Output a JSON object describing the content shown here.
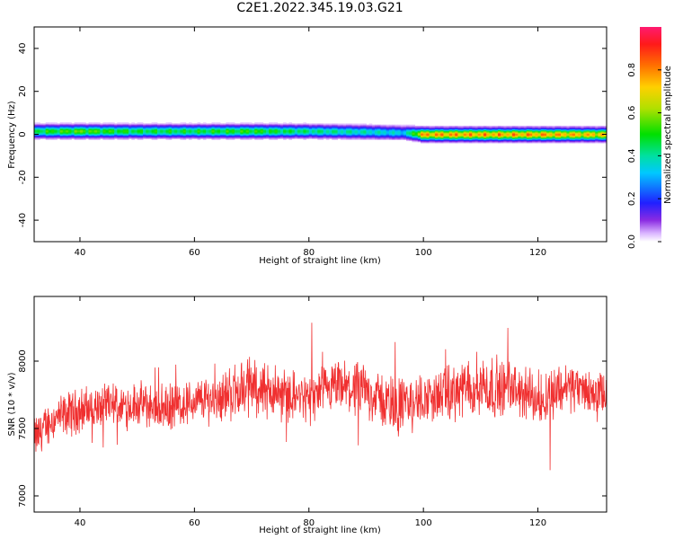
{
  "title": "C2E1.2022.345.19.03.G21",
  "chart_data": [
    {
      "type": "heatmap",
      "xlabel": "Height of straight line (km)",
      "ylabel": "Frequency (Hz)",
      "xlim": [
        32,
        132
      ],
      "ylim": [
        -50,
        50
      ],
      "xticks": [
        40,
        60,
        80,
        100,
        120
      ],
      "yticks": [
        -40,
        -20,
        0,
        20,
        40
      ],
      "colorbar": {
        "label": "Normalized spectral amplitude",
        "ticks": [
          0.0,
          0.2,
          0.4,
          0.6,
          0.8
        ],
        "range": [
          0,
          1
        ],
        "colormap": "rainbow"
      },
      "ridge": {
        "x": [
          32,
          40,
          50,
          60,
          70,
          80,
          90,
          97,
          100,
          110,
          120,
          130,
          132
        ],
        "frequency": [
          1.5,
          1.5,
          1.5,
          1.5,
          1.5,
          1.5,
          1.2,
          0.8,
          0.0,
          0.0,
          0.0,
          0.0,
          0.0
        ],
        "peak_amplitude": [
          0.55,
          0.65,
          0.55,
          0.55,
          0.6,
          0.5,
          0.45,
          0.4,
          0.9,
          0.9,
          0.9,
          0.85,
          0.85
        ]
      }
    },
    {
      "type": "line",
      "xlabel": "Height of straight line (km)",
      "ylabel": "SNR (10 * v/v)",
      "xlim": [
        32,
        132
      ],
      "ylim": [
        6880,
        8480
      ],
      "xticks": [
        40,
        60,
        80,
        100,
        120
      ],
      "yticks": [
        7000,
        7500,
        8000
      ],
      "series": [
        {
          "color": "#f03030",
          "x": [
            32,
            35,
            40,
            45,
            50,
            55,
            60,
            65,
            70,
            75,
            80,
            85,
            90,
            95,
            100,
            105,
            110,
            115,
            120,
            125,
            130,
            132
          ],
          "values": [
            7420,
            7560,
            7640,
            7660,
            7680,
            7650,
            7700,
            7740,
            7820,
            7760,
            7720,
            7800,
            7780,
            7660,
            7720,
            7760,
            7820,
            7800,
            7720,
            7820,
            7760,
            7740
          ],
          "spread": [
            130,
            120,
            130,
            130,
            130,
            130,
            130,
            150,
            170,
            150,
            140,
            160,
            150,
            170,
            140,
            160,
            200,
            150,
            170,
            150,
            130,
            130
          ]
        }
      ]
    }
  ]
}
